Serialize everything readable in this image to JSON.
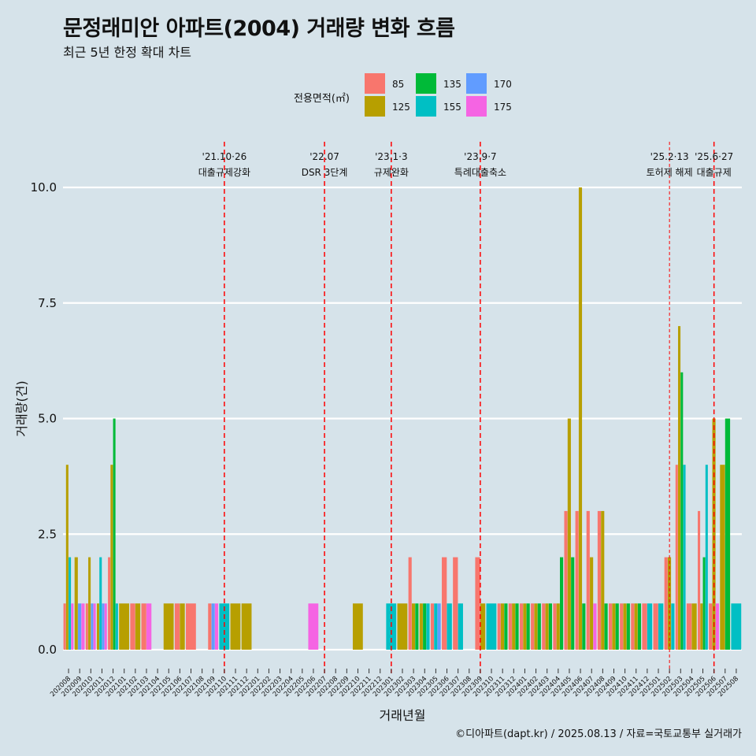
{
  "header": {
    "title": "문정래미안 아파트(2004) 거래량 변화 흐름",
    "subtitle": "최근 5년 한정 확대 차트"
  },
  "legend": {
    "title": "전용면적(㎡)",
    "items": [
      {
        "label": "85",
        "color": "#f8766d"
      },
      {
        "label": "125",
        "color": "#b79f00"
      },
      {
        "label": "135",
        "color": "#00ba38"
      },
      {
        "label": "155",
        "color": "#00bfc4"
      },
      {
        "label": "170",
        "color": "#619cff"
      },
      {
        "label": "175",
        "color": "#f564e3"
      }
    ]
  },
  "caption": "©디아파트(dapt.kr) / 2025.08.13 / 자료=국토교통부 실거래가",
  "chart_data": {
    "type": "bar",
    "xlabel": "거래년월",
    "ylabel": "거래량(건)",
    "ylim": [
      -0.5,
      10.5
    ],
    "yticks": [
      "0.0",
      "2.5",
      "5.0",
      "7.5",
      "10.0"
    ],
    "ytick_values": [
      0,
      2.5,
      5,
      7.5,
      10
    ],
    "legend_position": "top",
    "grid": "horizontal",
    "categories": [
      "202008",
      "202009",
      "202010",
      "202011",
      "202012",
      "202101",
      "202102",
      "202103",
      "202104",
      "202105",
      "202106",
      "202107",
      "202108",
      "202109",
      "202110",
      "202111",
      "202112",
      "202201",
      "202202",
      "202203",
      "202204",
      "202205",
      "202206",
      "202207",
      "202208",
      "202209",
      "202210",
      "202211",
      "202212",
      "202301",
      "202302",
      "202303",
      "202304",
      "202305",
      "202306",
      "202307",
      "202308",
      "202309",
      "202310",
      "202311",
      "202312",
      "202401",
      "202402",
      "202403",
      "202404",
      "202405",
      "202406",
      "202407",
      "202408",
      "202409",
      "202410",
      "202411",
      "202412",
      "202501",
      "202502",
      "202503",
      "202504",
      "202505",
      "202506",
      "202507",
      "202508"
    ],
    "series": [
      {
        "name": "85",
        "color": "#f8766d",
        "values": [
          1,
          0,
          1,
          0,
          2,
          0,
          1,
          1,
          0,
          0,
          1,
          1,
          0,
          1,
          0,
          0,
          0,
          0,
          0,
          0,
          0,
          0,
          0,
          0,
          0,
          0,
          0,
          0,
          0,
          0,
          0,
          2,
          0,
          1,
          2,
          2,
          0,
          2,
          0,
          1,
          1,
          1,
          1,
          1,
          1,
          3,
          3,
          3,
          3,
          1,
          1,
          1,
          1,
          1,
          2,
          4,
          1,
          3,
          1,
          0,
          0
        ]
      },
      {
        "name": "125",
        "color": "#b79f00",
        "values": [
          4,
          2,
          2,
          1,
          4,
          1,
          1,
          0,
          0,
          1,
          1,
          0,
          0,
          0,
          0,
          1,
          1,
          0,
          0,
          0,
          0,
          0,
          0,
          0,
          0,
          0,
          1,
          0,
          0,
          0,
          1,
          1,
          1,
          0,
          0,
          0,
          0,
          1,
          0,
          1,
          1,
          1,
          1,
          1,
          1,
          5,
          10,
          2,
          3,
          1,
          1,
          1,
          0,
          0,
          2,
          7,
          1,
          1,
          5,
          4,
          0
        ]
      },
      {
        "name": "135",
        "color": "#00ba38",
        "values": [
          0,
          0,
          0,
          0,
          5,
          0,
          0,
          0,
          0,
          0,
          0,
          0,
          0,
          0,
          0,
          0,
          0,
          0,
          0,
          0,
          0,
          0,
          0,
          0,
          0,
          0,
          0,
          0,
          0,
          0,
          0,
          1,
          1,
          0,
          0,
          0,
          0,
          0,
          0,
          1,
          1,
          1,
          1,
          1,
          2,
          2,
          1,
          0,
          1,
          1,
          1,
          1,
          0,
          0,
          0,
          6,
          0,
          2,
          0,
          5,
          0
        ]
      },
      {
        "name": "155",
        "color": "#00bfc4",
        "values": [
          2,
          0,
          0,
          2,
          1,
          0,
          0,
          0,
          0,
          0,
          0,
          0,
          0,
          0,
          1,
          0,
          0,
          0,
          0,
          0,
          0,
          0,
          0,
          0,
          0,
          0,
          0,
          0,
          0,
          1,
          0,
          0,
          1,
          1,
          1,
          1,
          0,
          0,
          1,
          0,
          0,
          0,
          0,
          0,
          0,
          0,
          0,
          0,
          0,
          0,
          0,
          0,
          1,
          1,
          1,
          4,
          0,
          4,
          0,
          0,
          1
        ]
      },
      {
        "name": "170",
        "color": "#619cff",
        "values": [
          0,
          1,
          1,
          1,
          0,
          0,
          0,
          0,
          0,
          0,
          0,
          0,
          0,
          1,
          0,
          0,
          0,
          0,
          0,
          0,
          0,
          0,
          0,
          0,
          0,
          0,
          0,
          0,
          0,
          0,
          0,
          0,
          0,
          1,
          0,
          0,
          0,
          0,
          0,
          0,
          0,
          0,
          0,
          0,
          0,
          0,
          0,
          0,
          0,
          0,
          0,
          0,
          0,
          0,
          0,
          0,
          0,
          0,
          0,
          0,
          0
        ]
      },
      {
        "name": "175",
        "color": "#f564e3",
        "values": [
          1,
          1,
          1,
          1,
          0,
          0,
          0,
          1,
          0,
          0,
          0,
          0,
          0,
          1,
          0,
          0,
          0,
          0,
          0,
          0,
          0,
          0,
          1,
          0,
          0,
          0,
          0,
          0,
          0,
          0,
          0,
          0,
          0,
          0,
          0,
          0,
          0,
          0,
          0,
          0,
          0,
          0,
          0,
          0,
          0,
          0,
          0,
          1,
          0,
          0,
          0,
          0,
          0,
          0,
          0,
          0,
          0,
          0,
          1,
          0,
          0
        ]
      }
    ],
    "events": [
      {
        "x": "202110",
        "date": "'21.10·26",
        "label": "대출규제강화",
        "style": "dashed"
      },
      {
        "x": "202207",
        "date": "'22.07",
        "label": "DSR 3단계",
        "style": "dashed"
      },
      {
        "x": "202301",
        "date": "'23.1·3",
        "label": "규제완화",
        "style": "dashed"
      },
      {
        "x": "202309",
        "date": "'23.9·7",
        "label": "특례대출축소",
        "style": "dashed"
      },
      {
        "x": "202502",
        "date": "'25.2·13",
        "label": "토허제 해제",
        "style": "dashed-fine"
      },
      {
        "x": "202506",
        "date": "'25.6·27",
        "label": "대출규제",
        "style": "dashed"
      }
    ],
    "event_color": "#ff0000",
    "bar_position": "dodge"
  }
}
